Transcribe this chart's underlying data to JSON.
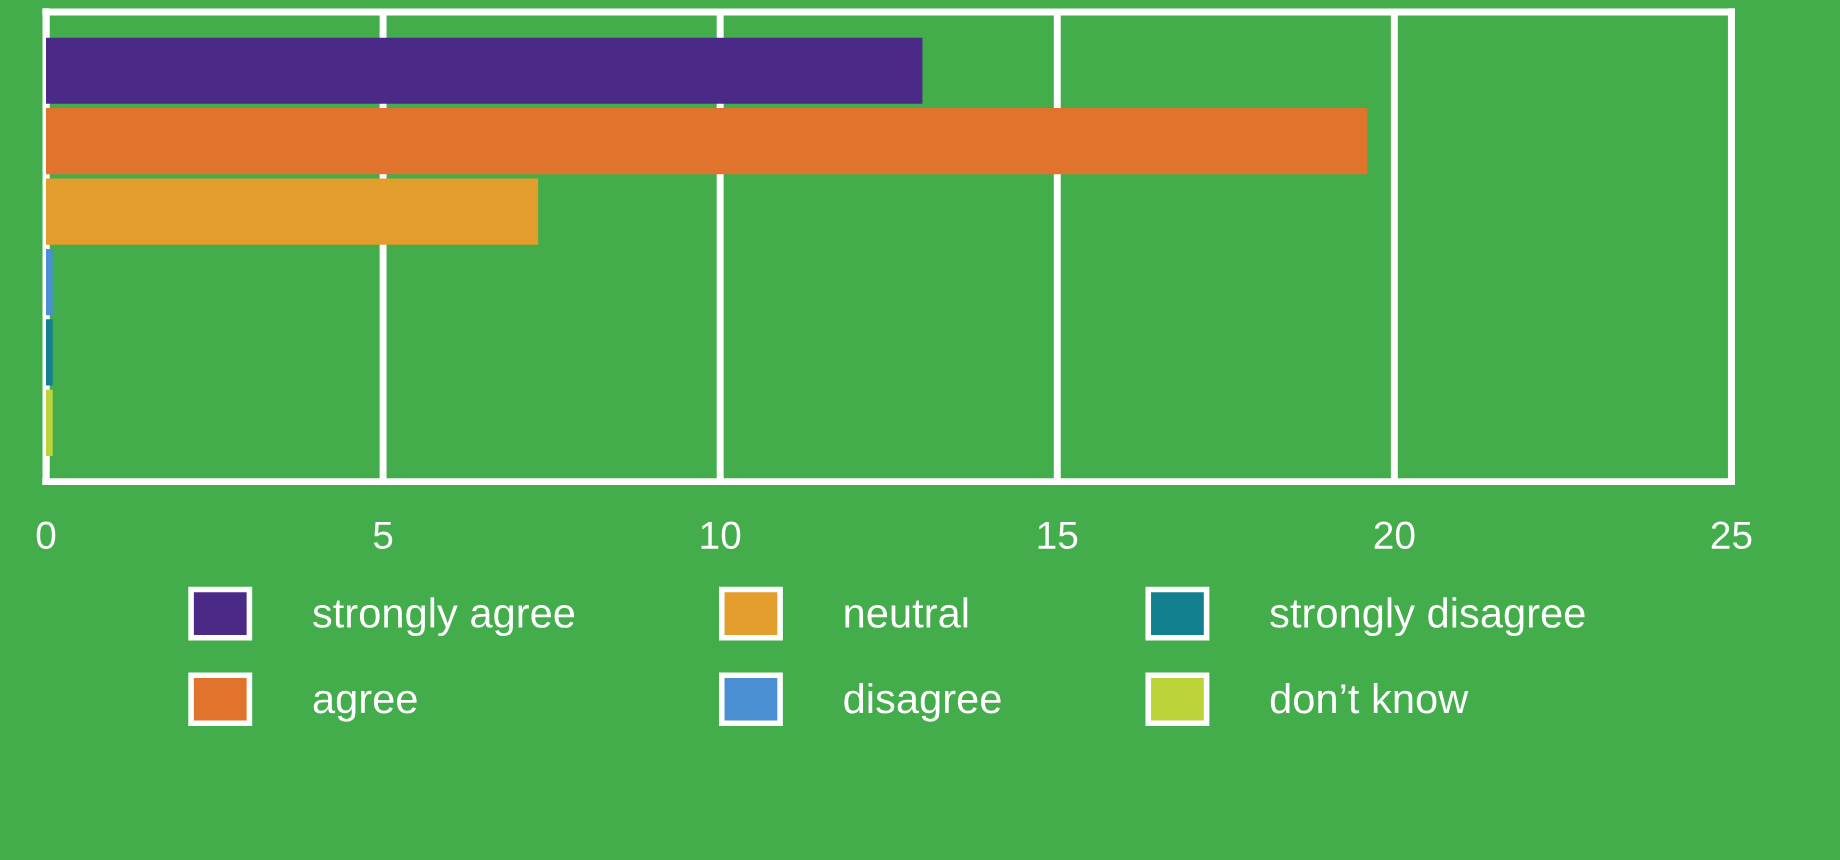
{
  "chart_data": {
    "type": "bar",
    "orientation": "horizontal",
    "categories": [
      null
    ],
    "series": [
      {
        "name": "strongly agree",
        "color": "#4b2a87",
        "values": [
          13.0
        ]
      },
      {
        "name": "agree",
        "color": "#e0742c",
        "values": [
          19.6
        ]
      },
      {
        "name": "neutral",
        "color": "#e39d2c",
        "values": [
          7.3
        ]
      },
      {
        "name": "disagree",
        "color": "#4a8fd4",
        "values": [
          0.1
        ]
      },
      {
        "name": "strongly disagree",
        "color": "#13808f",
        "values": [
          0.1
        ]
      },
      {
        "name": "don’t know",
        "color": "#bcd43a",
        "values": [
          0.1
        ]
      }
    ],
    "xlim": [
      0,
      25
    ],
    "xticks": [
      0,
      5,
      10,
      15,
      20,
      25
    ],
    "grid": "x",
    "legend": "bottom",
    "tick_labels": "x"
  }
}
